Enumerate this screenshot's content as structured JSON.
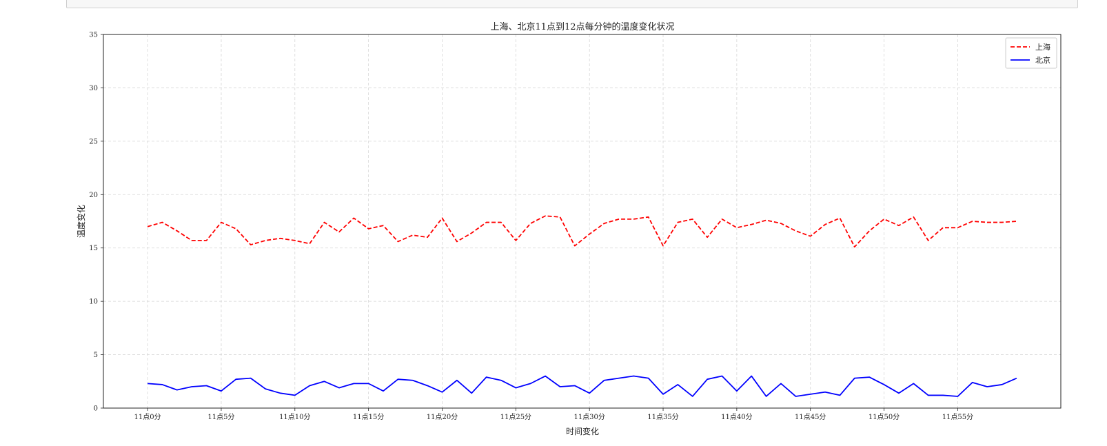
{
  "chart_data": {
    "type": "line",
    "title": "上海、北京11点到12点每分钟的温度变化状况",
    "xlabel": "时间变化",
    "ylabel": "温度变化",
    "ylim": [
      0,
      35
    ],
    "yticks": [
      0,
      5,
      10,
      15,
      20,
      25,
      30,
      35
    ],
    "x": [
      0,
      1,
      2,
      3,
      4,
      5,
      6,
      7,
      8,
      9,
      10,
      11,
      12,
      13,
      14,
      15,
      16,
      17,
      18,
      19,
      20,
      21,
      22,
      23,
      24,
      25,
      26,
      27,
      28,
      29,
      30,
      31,
      32,
      33,
      34,
      35,
      36,
      37,
      38,
      39,
      40,
      41,
      42,
      43,
      44,
      45,
      46,
      47,
      48,
      49,
      50,
      51,
      52,
      53,
      54,
      55,
      56,
      57,
      58,
      59
    ],
    "xlim": [
      -3,
      62
    ],
    "xticks": [
      0,
      5,
      10,
      15,
      20,
      25,
      30,
      35,
      40,
      45,
      50,
      55
    ],
    "xtick_labels": [
      "11点0分",
      "11点5分",
      "11点10分",
      "11点15分",
      "11点20分",
      "11点25分",
      "11点30分",
      "11点35分",
      "11点40分",
      "11点45分",
      "11点50分",
      "11点55分"
    ],
    "grid": true,
    "legend_position": "top-right",
    "series": [
      {
        "name": "上海",
        "style": "dashed",
        "color": "#ff0000",
        "values": [
          17.0,
          17.4,
          16.6,
          15.7,
          15.7,
          17.4,
          16.8,
          15.3,
          15.7,
          15.9,
          15.7,
          15.4,
          17.4,
          16.5,
          17.8,
          16.8,
          17.1,
          15.6,
          16.2,
          16.0,
          17.8,
          15.6,
          16.4,
          17.4,
          17.4,
          15.7,
          17.3,
          18.0,
          17.9,
          15.2,
          16.3,
          17.3,
          17.7,
          17.7,
          17.9,
          15.2,
          17.4,
          17.7,
          16.0,
          17.7,
          16.9,
          17.2,
          17.6,
          17.3,
          16.6,
          16.1,
          17.2,
          17.8,
          15.1,
          16.6,
          17.7,
          17.1,
          17.9,
          15.7,
          16.9,
          16.9,
          17.5,
          17.4,
          17.4,
          17.5
        ]
      },
      {
        "name": "北京",
        "style": "solid",
        "color": "#0000ff",
        "values": [
          2.3,
          2.2,
          1.7,
          2.0,
          2.1,
          1.6,
          2.7,
          2.8,
          1.8,
          1.4,
          1.2,
          2.1,
          2.5,
          1.9,
          2.3,
          2.3,
          1.6,
          2.7,
          2.6,
          2.1,
          1.5,
          2.6,
          1.4,
          2.9,
          2.6,
          1.9,
          2.3,
          3.0,
          2.0,
          2.1,
          1.4,
          2.6,
          2.8,
          3.0,
          2.8,
          1.3,
          2.2,
          1.1,
          2.7,
          3.0,
          1.6,
          3.0,
          1.1,
          2.3,
          1.1,
          1.3,
          1.5,
          1.2,
          2.8,
          2.9,
          2.2,
          1.4,
          2.3,
          1.2,
          1.2,
          1.1,
          2.4,
          2.0,
          2.2,
          2.8
        ]
      }
    ]
  }
}
